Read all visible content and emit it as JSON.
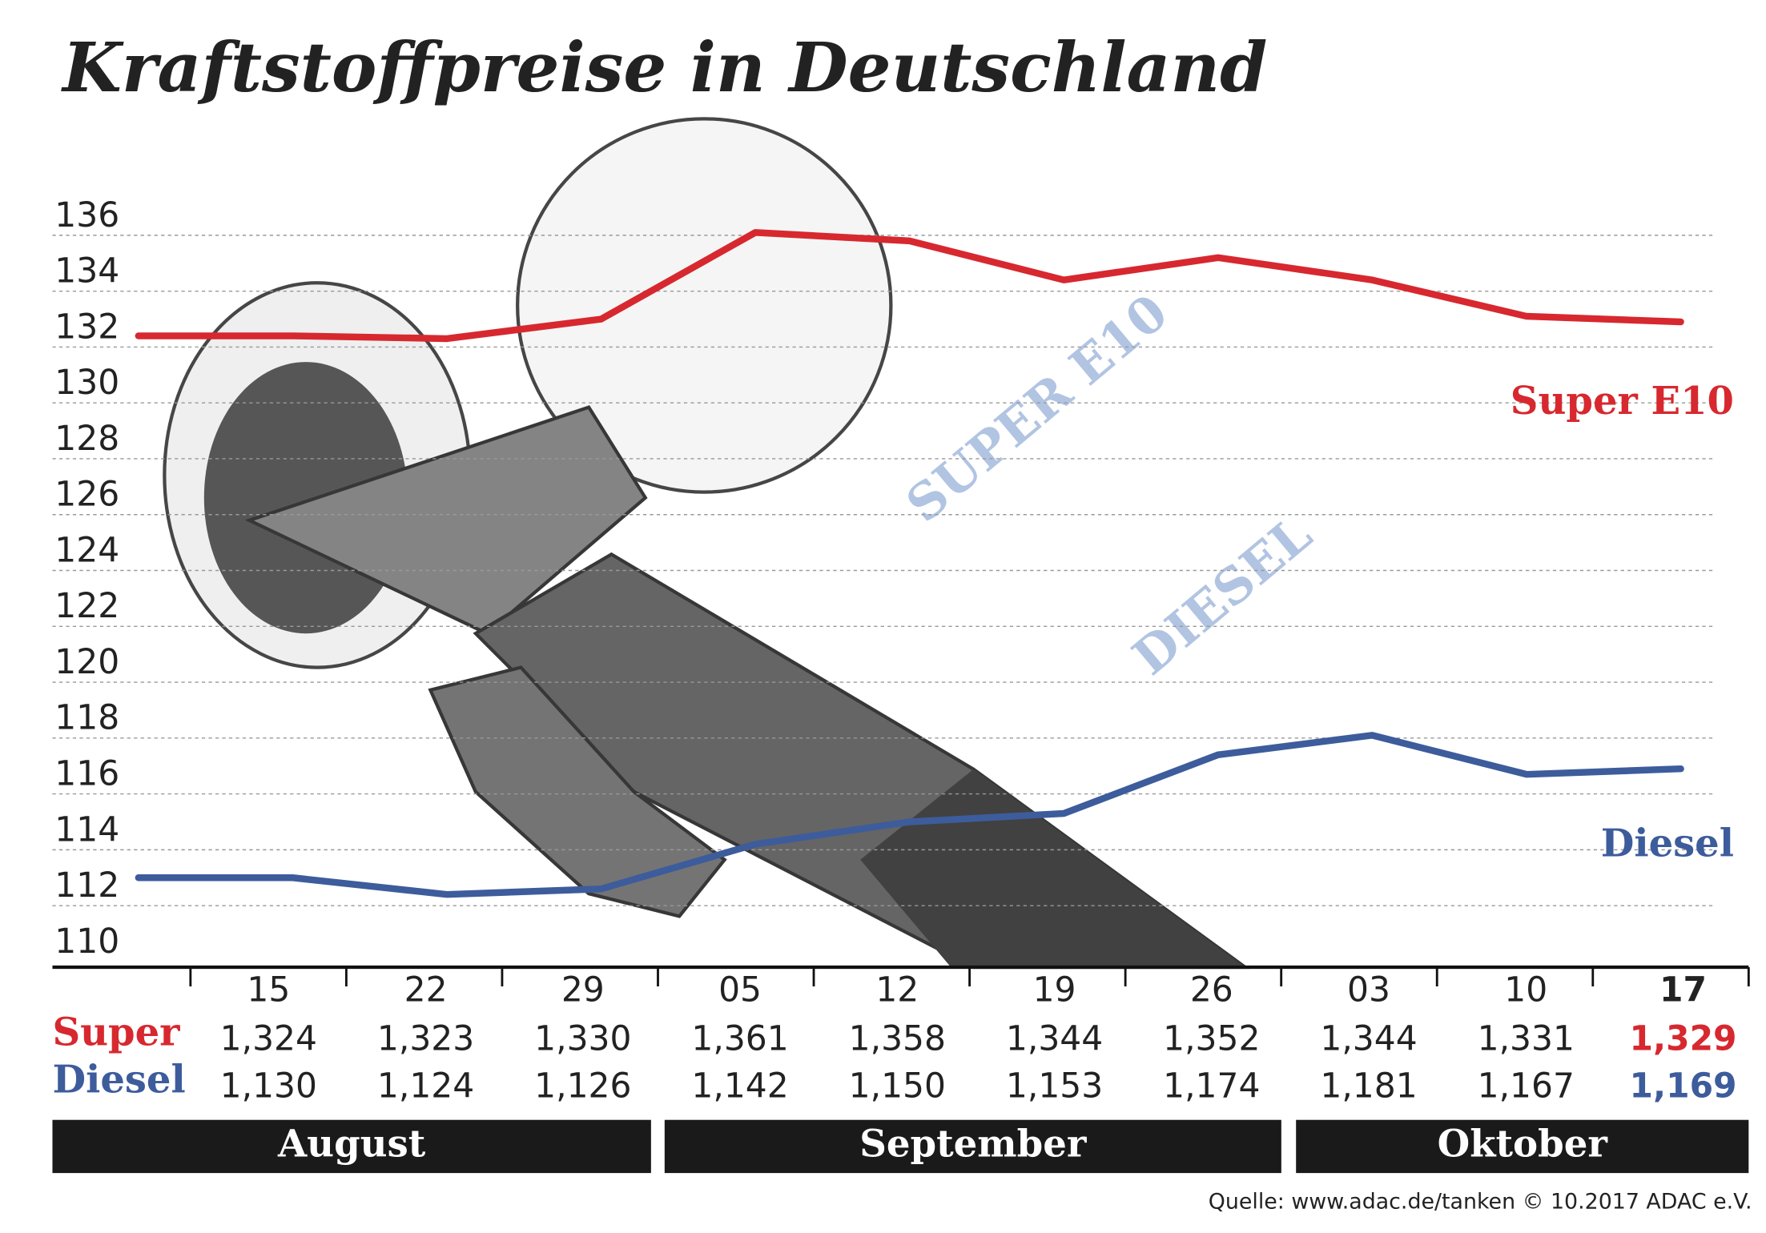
{
  "chart_data": {
    "type": "line",
    "title": "Kraftstoffpreise in Deutschland",
    "categories": [
      null,
      "15",
      "22",
      "29",
      "05",
      "12",
      "19",
      "26",
      "03",
      "10",
      "17"
    ],
    "ylim": [
      110,
      136
    ],
    "yticks": [
      110,
      112,
      114,
      116,
      118,
      120,
      122,
      124,
      126,
      128,
      130,
      132,
      134,
      136
    ],
    "grid": true,
    "series": [
      {
        "name": "Super E10",
        "row_label": "Super",
        "color": "#d7282f",
        "values": [
          132.4,
          132.4,
          132.3,
          133.0,
          136.1,
          135.8,
          134.4,
          135.2,
          134.4,
          133.1,
          132.9
        ],
        "value_labels": [
          null,
          "1,324",
          "1,323",
          "1,330",
          "1,361",
          "1,358",
          "1,344",
          "1,352",
          "1,344",
          "1,331",
          "1,329"
        ]
      },
      {
        "name": "Diesel",
        "row_label": "Diesel",
        "color": "#3d5c9c",
        "values": [
          113.0,
          113.0,
          112.4,
          112.6,
          114.2,
          115.0,
          115.3,
          117.4,
          118.1,
          116.7,
          116.9
        ],
        "value_labels": [
          null,
          "1,130",
          "1,124",
          "1,126",
          "1,142",
          "1,150",
          "1,153",
          "1,174",
          "1,181",
          "1,167",
          "1,169"
        ]
      }
    ],
    "months": [
      "August",
      "September",
      "Oktober"
    ],
    "source": "Quelle: www.adac.de/tanken   © 10.2017  ADAC e.V."
  }
}
